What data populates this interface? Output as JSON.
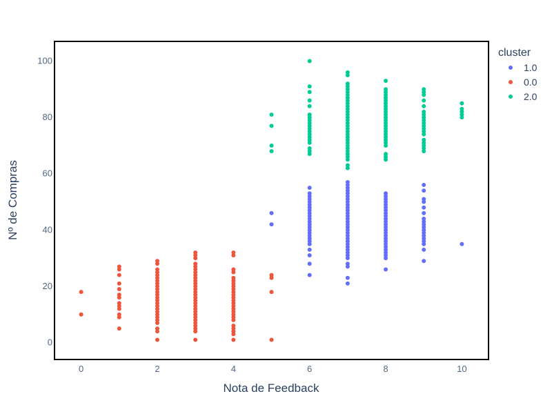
{
  "chart_data": {
    "type": "scatter",
    "title": "",
    "xlabel": "Nota de Feedback",
    "ylabel": "Nº de Compras",
    "xlim": [
      -0.7,
      10.7
    ],
    "ylim": [
      -6,
      107
    ],
    "x_ticks": [
      "0",
      "2",
      "4",
      "6",
      "8",
      "10"
    ],
    "y_ticks": [
      "0",
      "20",
      "40",
      "60",
      "80",
      "100"
    ],
    "grid": false,
    "legend_title": "cluster",
    "legend_position": "top-right",
    "series": [
      {
        "name": "1.0",
        "color": "#636efa",
        "points": [
          [
            5,
            42
          ],
          [
            5,
            46
          ],
          [
            6,
            24
          ],
          [
            6,
            28
          ],
          [
            6,
            31
          ],
          [
            6,
            33
          ],
          [
            6,
            35
          ],
          [
            6,
            36
          ],
          [
            6,
            37
          ],
          [
            6,
            38
          ],
          [
            6,
            39
          ],
          [
            6,
            40
          ],
          [
            6,
            41
          ],
          [
            6,
            42
          ],
          [
            6,
            43
          ],
          [
            6,
            44
          ],
          [
            6,
            45
          ],
          [
            6,
            46
          ],
          [
            6,
            47
          ],
          [
            6,
            48
          ],
          [
            6,
            49
          ],
          [
            6,
            50
          ],
          [
            6,
            51
          ],
          [
            6,
            52
          ],
          [
            6,
            53
          ],
          [
            6,
            55
          ],
          [
            7,
            21
          ],
          [
            7,
            23
          ],
          [
            7,
            27
          ],
          [
            7,
            28
          ],
          [
            7,
            30
          ],
          [
            7,
            31
          ],
          [
            7,
            32
          ],
          [
            7,
            33
          ],
          [
            7,
            34
          ],
          [
            7,
            35
          ],
          [
            7,
            36
          ],
          [
            7,
            37
          ],
          [
            7,
            38
          ],
          [
            7,
            39
          ],
          [
            7,
            40
          ],
          [
            7,
            41
          ],
          [
            7,
            42
          ],
          [
            7,
            43
          ],
          [
            7,
            44
          ],
          [
            7,
            45
          ],
          [
            7,
            46
          ],
          [
            7,
            47
          ],
          [
            7,
            48
          ],
          [
            7,
            49
          ],
          [
            7,
            50
          ],
          [
            7,
            51
          ],
          [
            7,
            52
          ],
          [
            7,
            53
          ],
          [
            7,
            54
          ],
          [
            7,
            55
          ],
          [
            7,
            56
          ],
          [
            7,
            57
          ],
          [
            8,
            26
          ],
          [
            8,
            30
          ],
          [
            8,
            31
          ],
          [
            8,
            32
          ],
          [
            8,
            33
          ],
          [
            8,
            34
          ],
          [
            8,
            35
          ],
          [
            8,
            36
          ],
          [
            8,
            37
          ],
          [
            8,
            38
          ],
          [
            8,
            39
          ],
          [
            8,
            40
          ],
          [
            8,
            41
          ],
          [
            8,
            42
          ],
          [
            8,
            43
          ],
          [
            8,
            44
          ],
          [
            8,
            45
          ],
          [
            8,
            46
          ],
          [
            8,
            47
          ],
          [
            8,
            48
          ],
          [
            8,
            49
          ],
          [
            8,
            50
          ],
          [
            8,
            51
          ],
          [
            8,
            52
          ],
          [
            8,
            53
          ],
          [
            9,
            29
          ],
          [
            9,
            33
          ],
          [
            9,
            35
          ],
          [
            9,
            36
          ],
          [
            9,
            37
          ],
          [
            9,
            38
          ],
          [
            9,
            39
          ],
          [
            9,
            40
          ],
          [
            9,
            41
          ],
          [
            9,
            42
          ],
          [
            9,
            43
          ],
          [
            9,
            44
          ],
          [
            9,
            46
          ],
          [
            9,
            48
          ],
          [
            9,
            50
          ],
          [
            9,
            51
          ],
          [
            9,
            54
          ],
          [
            9,
            56
          ],
          [
            10,
            35
          ]
        ]
      },
      {
        "name": "0.0",
        "color": "#ef553b",
        "points": [
          [
            0,
            10
          ],
          [
            0,
            18
          ],
          [
            1,
            5
          ],
          [
            1,
            9
          ],
          [
            1,
            10
          ],
          [
            1,
            12
          ],
          [
            1,
            13
          ],
          [
            1,
            14
          ],
          [
            1,
            16
          ],
          [
            1,
            17
          ],
          [
            1,
            19
          ],
          [
            1,
            21
          ],
          [
            1,
            24
          ],
          [
            1,
            26
          ],
          [
            1,
            27
          ],
          [
            2,
            1
          ],
          [
            2,
            4
          ],
          [
            2,
            5
          ],
          [
            2,
            7
          ],
          [
            2,
            8
          ],
          [
            2,
            9
          ],
          [
            2,
            10
          ],
          [
            2,
            11
          ],
          [
            2,
            12
          ],
          [
            2,
            13
          ],
          [
            2,
            14
          ],
          [
            2,
            15
          ],
          [
            2,
            16
          ],
          [
            2,
            17
          ],
          [
            2,
            18
          ],
          [
            2,
            19
          ],
          [
            2,
            20
          ],
          [
            2,
            21
          ],
          [
            2,
            22
          ],
          [
            2,
            23
          ],
          [
            2,
            24
          ],
          [
            2,
            25
          ],
          [
            2,
            26
          ],
          [
            2,
            28
          ],
          [
            2,
            29
          ],
          [
            3,
            1
          ],
          [
            3,
            4
          ],
          [
            3,
            5
          ],
          [
            3,
            6
          ],
          [
            3,
            7
          ],
          [
            3,
            8
          ],
          [
            3,
            9
          ],
          [
            3,
            10
          ],
          [
            3,
            11
          ],
          [
            3,
            12
          ],
          [
            3,
            13
          ],
          [
            3,
            14
          ],
          [
            3,
            15
          ],
          [
            3,
            16
          ],
          [
            3,
            17
          ],
          [
            3,
            18
          ],
          [
            3,
            19
          ],
          [
            3,
            20
          ],
          [
            3,
            21
          ],
          [
            3,
            22
          ],
          [
            3,
            23
          ],
          [
            3,
            24
          ],
          [
            3,
            25
          ],
          [
            3,
            26
          ],
          [
            3,
            27
          ],
          [
            3,
            28
          ],
          [
            3,
            30
          ],
          [
            3,
            31
          ],
          [
            3,
            32
          ],
          [
            4,
            1
          ],
          [
            4,
            3
          ],
          [
            4,
            4
          ],
          [
            4,
            5
          ],
          [
            4,
            6
          ],
          [
            4,
            8
          ],
          [
            4,
            9
          ],
          [
            4,
            10
          ],
          [
            4,
            11
          ],
          [
            4,
            12
          ],
          [
            4,
            13
          ],
          [
            4,
            14
          ],
          [
            4,
            15
          ],
          [
            4,
            16
          ],
          [
            4,
            17
          ],
          [
            4,
            18
          ],
          [
            4,
            19
          ],
          [
            4,
            20
          ],
          [
            4,
            21
          ],
          [
            4,
            22
          ],
          [
            4,
            23
          ],
          [
            4,
            25
          ],
          [
            4,
            26
          ],
          [
            4,
            31
          ],
          [
            4,
            32
          ],
          [
            5,
            1
          ],
          [
            5,
            18
          ],
          [
            5,
            23
          ],
          [
            5,
            24
          ]
        ]
      },
      {
        "name": "2.0",
        "color": "#00cc96",
        "points": [
          [
            5,
            68
          ],
          [
            5,
            70
          ],
          [
            5,
            77
          ],
          [
            5,
            81
          ],
          [
            6,
            67
          ],
          [
            6,
            68
          ],
          [
            6,
            69
          ],
          [
            6,
            71
          ],
          [
            6,
            72
          ],
          [
            6,
            73
          ],
          [
            6,
            74
          ],
          [
            6,
            75
          ],
          [
            6,
            76
          ],
          [
            6,
            77
          ],
          [
            6,
            78
          ],
          [
            6,
            79
          ],
          [
            6,
            80
          ],
          [
            6,
            81
          ],
          [
            6,
            84
          ],
          [
            6,
            86
          ],
          [
            6,
            89
          ],
          [
            6,
            91
          ],
          [
            6,
            100
          ],
          [
            7,
            62
          ],
          [
            7,
            63
          ],
          [
            7,
            65
          ],
          [
            7,
            66
          ],
          [
            7,
            67
          ],
          [
            7,
            68
          ],
          [
            7,
            69
          ],
          [
            7,
            70
          ],
          [
            7,
            71
          ],
          [
            7,
            72
          ],
          [
            7,
            73
          ],
          [
            7,
            74
          ],
          [
            7,
            75
          ],
          [
            7,
            76
          ],
          [
            7,
            77
          ],
          [
            7,
            78
          ],
          [
            7,
            79
          ],
          [
            7,
            80
          ],
          [
            7,
            81
          ],
          [
            7,
            82
          ],
          [
            7,
            83
          ],
          [
            7,
            84
          ],
          [
            7,
            85
          ],
          [
            7,
            86
          ],
          [
            7,
            87
          ],
          [
            7,
            88
          ],
          [
            7,
            89
          ],
          [
            7,
            90
          ],
          [
            7,
            91
          ],
          [
            7,
            92
          ],
          [
            7,
            95
          ],
          [
            7,
            96
          ],
          [
            8,
            65
          ],
          [
            8,
            66
          ],
          [
            8,
            67
          ],
          [
            8,
            70
          ],
          [
            8,
            71
          ],
          [
            8,
            72
          ],
          [
            8,
            73
          ],
          [
            8,
            74
          ],
          [
            8,
            75
          ],
          [
            8,
            76
          ],
          [
            8,
            77
          ],
          [
            8,
            78
          ],
          [
            8,
            79
          ],
          [
            8,
            80
          ],
          [
            8,
            81
          ],
          [
            8,
            82
          ],
          [
            8,
            83
          ],
          [
            8,
            84
          ],
          [
            8,
            85
          ],
          [
            8,
            86
          ],
          [
            8,
            87
          ],
          [
            8,
            88
          ],
          [
            8,
            89
          ],
          [
            8,
            90
          ],
          [
            8,
            93
          ],
          [
            9,
            68
          ],
          [
            9,
            69
          ],
          [
            9,
            70
          ],
          [
            9,
            71
          ],
          [
            9,
            72
          ],
          [
            9,
            74
          ],
          [
            9,
            75
          ],
          [
            9,
            76
          ],
          [
            9,
            77
          ],
          [
            9,
            78
          ],
          [
            9,
            79
          ],
          [
            9,
            80
          ],
          [
            9,
            81
          ],
          [
            9,
            82
          ],
          [
            9,
            84
          ],
          [
            9,
            86
          ],
          [
            9,
            88
          ],
          [
            9,
            89
          ],
          [
            9,
            90
          ],
          [
            10,
            80
          ],
          [
            10,
            81
          ],
          [
            10,
            82
          ],
          [
            10,
            83
          ],
          [
            10,
            85
          ]
        ]
      }
    ]
  }
}
